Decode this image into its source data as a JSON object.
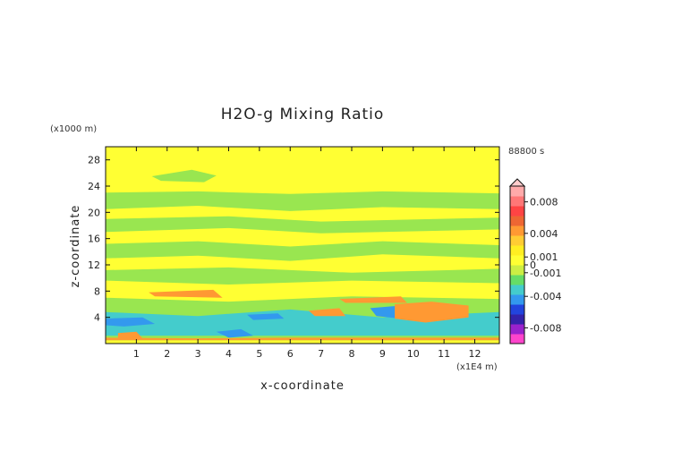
{
  "chart_data": {
    "type": "heatmap",
    "title": "H2O-g Mixing Ratio",
    "xlabel": "x-coordinate",
    "ylabel": "z-coordinate",
    "x_unit": "(x1E4 m)",
    "y_unit": "(x1000 m)",
    "time_label": "88800 s",
    "xlim": [
      0,
      12.8
    ],
    "ylim": [
      0,
      30
    ],
    "x_ticks": [
      1,
      2,
      3,
      4,
      5,
      6,
      7,
      8,
      9,
      10,
      11,
      12
    ],
    "y_ticks": [
      4,
      8,
      12,
      16,
      20,
      24,
      28
    ],
    "colorbar": {
      "vmin": -0.01,
      "vmax": 0.01,
      "labels": [
        {
          "value": 0.008,
          "text": "0.008"
        },
        {
          "value": 0.004,
          "text": "0.004"
        },
        {
          "value": 0.001,
          "text": "0.001"
        },
        {
          "value": 0,
          "text": "0"
        },
        {
          "value": -0.001,
          "text": "-0.001"
        },
        {
          "value": -0.004,
          "text": "-0.004"
        },
        {
          "value": -0.008,
          "text": "-0.008"
        }
      ],
      "colors": [
        "#ff44cc",
        "#9922cc",
        "#3322aa",
        "#2244dd",
        "#3399ee",
        "#44cccc",
        "#66dd66",
        "#ccee44",
        "#ffff33",
        "#ffee22",
        "#ffcc33",
        "#ff9933",
        "#ee6633",
        "#ff4444",
        "#ff7777",
        "#ffaaaa"
      ]
    },
    "background_value": 0.0,
    "regions": [
      {
        "level": "green",
        "points": [
          [
            0,
            23.0
          ],
          [
            3,
            23.2
          ],
          [
            6,
            22.8
          ],
          [
            9,
            23.2
          ],
          [
            12.8,
            22.9
          ],
          [
            12.8,
            20.5
          ],
          [
            9,
            20.8
          ],
          [
            6,
            20.2
          ],
          [
            3,
            21.0
          ],
          [
            0,
            20.5
          ]
        ]
      },
      {
        "level": "green",
        "points": [
          [
            1.5,
            25.5
          ],
          [
            2.8,
            26.5
          ],
          [
            3.6,
            25.6
          ],
          [
            3.2,
            24.6
          ],
          [
            1.8,
            24.8
          ]
        ]
      },
      {
        "level": "green",
        "points": [
          [
            0,
            19.0
          ],
          [
            4,
            19.4
          ],
          [
            7,
            18.6
          ],
          [
            12.8,
            19.2
          ],
          [
            12.8,
            17.4
          ],
          [
            7,
            16.8
          ],
          [
            4,
            17.6
          ],
          [
            0,
            17.0
          ]
        ]
      },
      {
        "level": "green",
        "points": [
          [
            0,
            15.2
          ],
          [
            3,
            15.6
          ],
          [
            6,
            14.8
          ],
          [
            9,
            15.6
          ],
          [
            12.8,
            15.0
          ],
          [
            12.8,
            13.0
          ],
          [
            9,
            13.6
          ],
          [
            6,
            12.6
          ],
          [
            3,
            13.4
          ],
          [
            0,
            13.0
          ]
        ]
      },
      {
        "level": "green",
        "points": [
          [
            0,
            11.2
          ],
          [
            4,
            11.6
          ],
          [
            8,
            10.8
          ],
          [
            12.8,
            11.4
          ],
          [
            12.8,
            9.2
          ],
          [
            8,
            9.6
          ],
          [
            4,
            9.0
          ],
          [
            0,
            9.6
          ]
        ]
      },
      {
        "level": "green",
        "points": [
          [
            0,
            7.0
          ],
          [
            4,
            6.4
          ],
          [
            8,
            7.2
          ],
          [
            12.8,
            6.8
          ],
          [
            12.8,
            0.4
          ],
          [
            0,
            0.4
          ]
        ]
      },
      {
        "level": "cyan",
        "points": [
          [
            0,
            4.8
          ],
          [
            3,
            4.2
          ],
          [
            6,
            5.2
          ],
          [
            9,
            4.0
          ],
          [
            12.8,
            4.8
          ],
          [
            12.8,
            1.2
          ],
          [
            0,
            1.2
          ]
        ]
      },
      {
        "level": "blue",
        "points": [
          [
            0,
            3.8
          ],
          [
            1.2,
            4.0
          ],
          [
            1.6,
            3.0
          ],
          [
            0.6,
            2.6
          ],
          [
            0,
            2.8
          ]
        ]
      },
      {
        "level": "blue",
        "points": [
          [
            8.6,
            5.4
          ],
          [
            9.6,
            5.8
          ],
          [
            10.2,
            4.6
          ],
          [
            9.6,
            3.8
          ],
          [
            8.8,
            4.2
          ]
        ]
      },
      {
        "level": "blue",
        "points": [
          [
            3.6,
            1.8
          ],
          [
            4.4,
            2.2
          ],
          [
            4.8,
            1.2
          ],
          [
            4.0,
            0.9
          ]
        ]
      },
      {
        "level": "blue",
        "points": [
          [
            4.6,
            4.4
          ],
          [
            5.6,
            4.6
          ],
          [
            5.8,
            3.8
          ],
          [
            4.8,
            3.6
          ]
        ]
      },
      {
        "level": "yellow",
        "points": [
          [
            0,
            0.5
          ],
          [
            12.8,
            0.5
          ],
          [
            12.8,
            0
          ],
          [
            0,
            0
          ]
        ]
      },
      {
        "level": "orange",
        "points": [
          [
            1.4,
            7.8
          ],
          [
            3.5,
            8.2
          ],
          [
            3.8,
            7.0
          ],
          [
            1.6,
            7.2
          ]
        ]
      },
      {
        "level": "orange",
        "points": [
          [
            7.6,
            6.8
          ],
          [
            9.6,
            7.2
          ],
          [
            9.8,
            6.2
          ],
          [
            7.8,
            6.2
          ]
        ]
      },
      {
        "level": "orange",
        "points": [
          [
            6.6,
            5.0
          ],
          [
            7.6,
            5.4
          ],
          [
            7.8,
            4.2
          ],
          [
            6.8,
            4.2
          ]
        ]
      },
      {
        "level": "orange",
        "points": [
          [
            9.4,
            6.0
          ],
          [
            10.6,
            6.4
          ],
          [
            11.8,
            5.8
          ],
          [
            11.8,
            4.0
          ],
          [
            10.4,
            3.2
          ],
          [
            9.4,
            3.8
          ]
        ]
      },
      {
        "level": "orange",
        "points": [
          [
            0.4,
            1.6
          ],
          [
            1.0,
            1.8
          ],
          [
            1.2,
            0.8
          ],
          [
            0.4,
            0.8
          ]
        ]
      },
      {
        "level": "orange",
        "points": [
          [
            0,
            0.9
          ],
          [
            3,
            0.8
          ],
          [
            6,
            0.9
          ],
          [
            12.8,
            0.9
          ],
          [
            12.8,
            0.5
          ],
          [
            0,
            0.5
          ]
        ]
      }
    ]
  }
}
